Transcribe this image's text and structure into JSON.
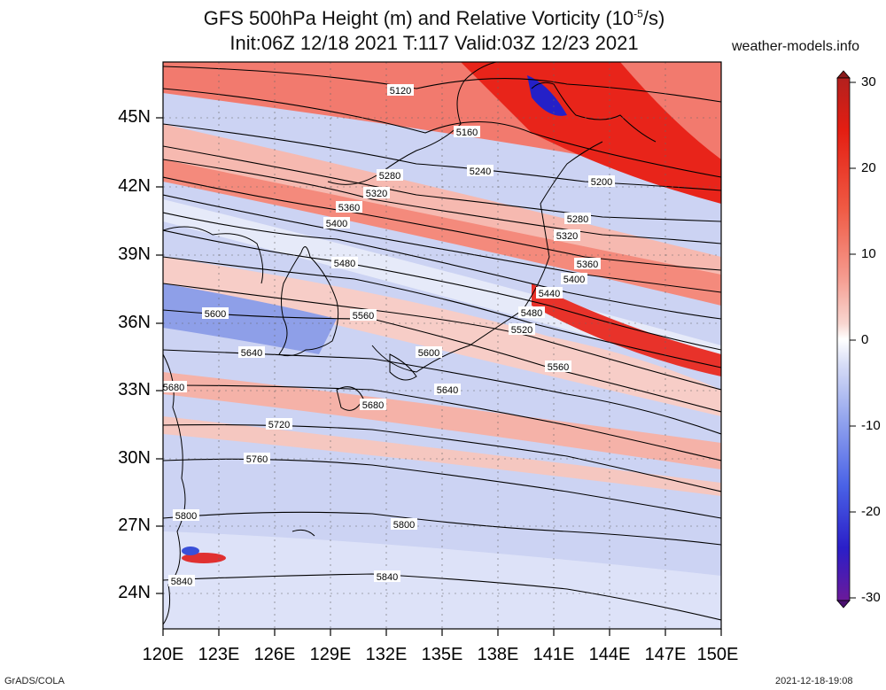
{
  "title": {
    "line1": "GFS 500hPa Height (m) and Relative Vorticity (10",
    "line1_exp": "-5",
    "line1_end": "/s)",
    "line2": "Init:06Z 12/18 2021 T:117 Valid:03Z 12/23 2021"
  },
  "site": "weather-models.info",
  "footer": {
    "left": "GrADS/COLA",
    "right": "2021-12-18-19:08"
  },
  "axes": {
    "lat_labels": [
      "45N",
      "42N",
      "39N",
      "36N",
      "33N",
      "30N",
      "27N",
      "24N"
    ],
    "lon_labels": [
      "120E",
      "123E",
      "126E",
      "129E",
      "132E",
      "135E",
      "138E",
      "141E",
      "144E",
      "147E",
      "150E"
    ]
  },
  "colorbar": {
    "labels": [
      "30",
      "20",
      "10",
      "0",
      "-10",
      "-20",
      "-30"
    ],
    "colors": [
      "#6b1a9a",
      "#2a1ec8",
      "#4a62e6",
      "#95a6ee",
      "#d6dcf6",
      "#ffffff",
      "#f8d6d0",
      "#f59a8e",
      "#f05a44",
      "#e41e12",
      "#b3201e"
    ]
  },
  "contour_labels": [
    "5120",
    "5160",
    "5200",
    "5240",
    "5280",
    "5320",
    "5360",
    "5400",
    "5440",
    "5480",
    "5520",
    "5560",
    "5600",
    "5640",
    "5680",
    "5720",
    "5760",
    "5800",
    "5840"
  ]
}
